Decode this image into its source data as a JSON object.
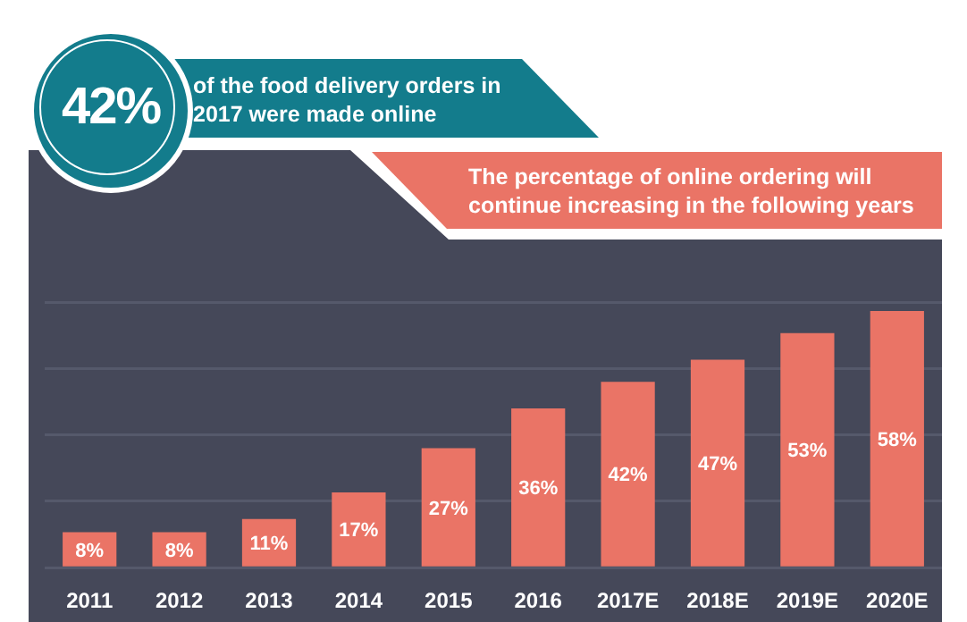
{
  "chart_data": {
    "type": "bar",
    "title": "42%",
    "subtitle": "of the food delivery orders in 2017 were made online",
    "annotations": [
      "The percentage of online ordering will continue increasing in the following years"
    ],
    "categories": [
      "2011",
      "2012",
      "2013",
      "2014",
      "2015",
      "2016",
      "2017E",
      "2018E",
      "2019E",
      "2020E"
    ],
    "values": [
      8,
      8,
      11,
      17,
      27,
      36,
      42,
      47,
      53,
      58
    ],
    "value_labels": [
      "8%",
      "8%",
      "11%",
      "17%",
      "27%",
      "36%",
      "42%",
      "47%",
      "53%",
      "58%"
    ],
    "color": "#ea7466",
    "ylim": [
      0,
      60
    ],
    "yticks": [
      {
        "value": 0,
        "label": null
      },
      {
        "value": 15,
        "label": null
      },
      {
        "value": 30,
        "label": null
      },
      {
        "value": 45,
        "label": null
      },
      {
        "value": 60,
        "label": null
      }
    ],
    "grid": "y",
    "tick_labels": "x",
    "legend": false
  }
}
